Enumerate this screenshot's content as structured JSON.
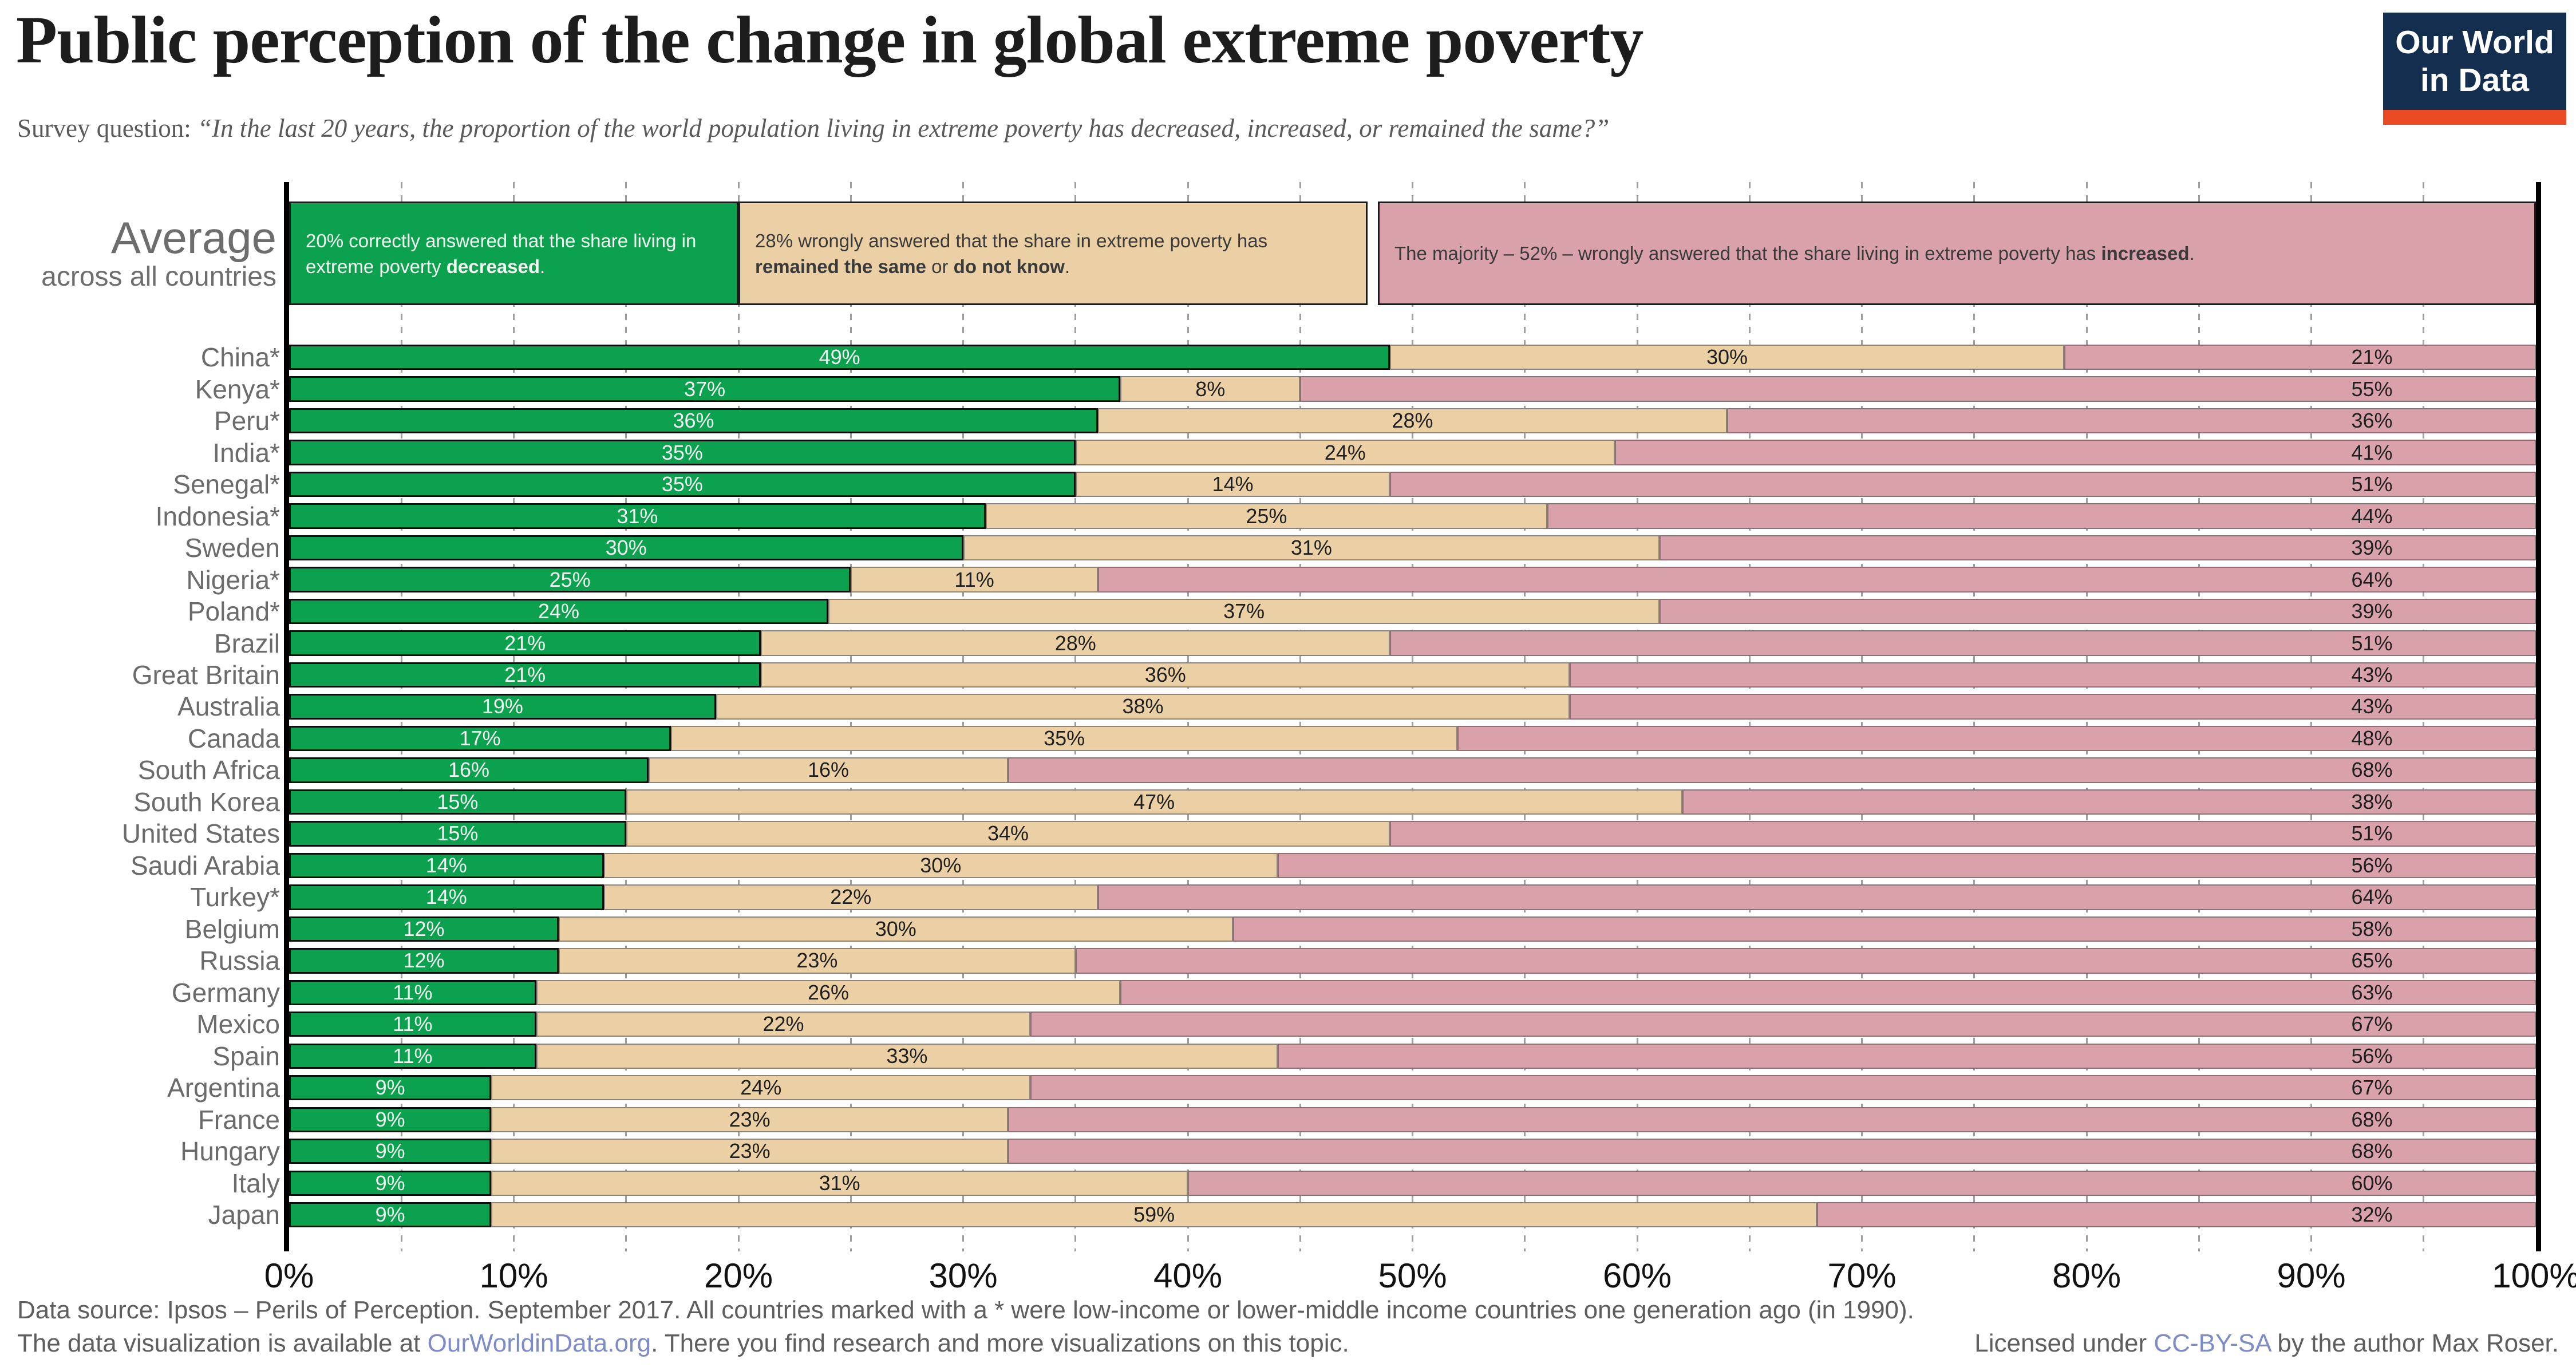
{
  "page": {
    "title": "Public perception of the change in global extreme poverty"
  },
  "logo": {
    "line1": "Our World",
    "line2": "in Data",
    "bg_color": "#132e4e",
    "accent_color": "#ea4b24"
  },
  "survey_question": {
    "label": "Survey question:",
    "quote": "“In the last 20 years, the proportion of the world population living in extreme poverty has decreased, increased, or remained the same?”"
  },
  "legend": {
    "title": "Average",
    "subtitle": "across all countries",
    "boxes": [
      {
        "key": "decreased",
        "width_pct": 20,
        "color": "#0ba14e",
        "text_color": "#f2f7f2",
        "parts": [
          {
            "t": "20% correctly answered that the share living in extreme poverty "
          },
          {
            "t": "decreased",
            "b": true
          },
          {
            "t": "."
          }
        ]
      },
      {
        "key": "same",
        "width_pct": 28,
        "color": "#ecd0a5",
        "text_color": "#3a3a3a",
        "parts": [
          {
            "t": "28% wrongly answered that the share in extreme poverty has "
          },
          {
            "t": "remained the same",
            "b": true
          },
          {
            "t": " or "
          },
          {
            "t": "do not know",
            "b": true
          },
          {
            "t": "."
          }
        ]
      },
      {
        "key": "increased",
        "width_pct": 52,
        "color": "#d9a1aa",
        "text_color": "#3a3a3a",
        "parts": [
          {
            "t": "The majority – 52% – wrongly answered that the share living in extreme poverty has "
          },
          {
            "t": "increased",
            "b": true
          },
          {
            "t": "."
          }
        ]
      }
    ]
  },
  "chart_data": {
    "type": "bar",
    "orientation": "horizontal",
    "stacked": true,
    "unit": "%",
    "xlim": [
      0,
      100
    ],
    "x_tick_labels": [
      "0%",
      "10%",
      "20%",
      "30%",
      "40%",
      "50%",
      "60%",
      "70%",
      "80%",
      "90%",
      "100%"
    ],
    "gridlines_every_pct": 5,
    "grid": "dashed",
    "series": [
      {
        "key": "decreased",
        "name": "correctly answered: decreased",
        "color": "#0ba14e"
      },
      {
        "key": "same",
        "name": "wrongly answered: remained the same or do not know",
        "color": "#ecd0a5"
      },
      {
        "key": "increased",
        "name": "wrongly answered: increased",
        "color": "#d9a1aa"
      }
    ],
    "average": {
      "decreased": 20,
      "same": 28,
      "increased": 52
    },
    "countries": [
      {
        "name": "China*",
        "decreased": 49,
        "same": 30,
        "increased": 21
      },
      {
        "name": "Kenya*",
        "decreased": 37,
        "same": 8,
        "increased": 55
      },
      {
        "name": "Peru*",
        "decreased": 36,
        "same": 28,
        "increased": 36
      },
      {
        "name": "India*",
        "decreased": 35,
        "same": 24,
        "increased": 41
      },
      {
        "name": "Senegal*",
        "decreased": 35,
        "same": 14,
        "increased": 51
      },
      {
        "name": "Indonesia*",
        "decreased": 31,
        "same": 25,
        "increased": 44
      },
      {
        "name": "Sweden",
        "decreased": 30,
        "same": 31,
        "increased": 39
      },
      {
        "name": "Nigeria*",
        "decreased": 25,
        "same": 11,
        "increased": 64
      },
      {
        "name": "Poland*",
        "decreased": 24,
        "same": 37,
        "increased": 39
      },
      {
        "name": "Brazil",
        "decreased": 21,
        "same": 28,
        "increased": 51
      },
      {
        "name": "Great Britain",
        "decreased": 21,
        "same": 36,
        "increased": 43
      },
      {
        "name": "Australia",
        "decreased": 19,
        "same": 38,
        "increased": 43
      },
      {
        "name": "Canada",
        "decreased": 17,
        "same": 35,
        "increased": 48
      },
      {
        "name": "South Africa",
        "decreased": 16,
        "same": 16,
        "increased": 68
      },
      {
        "name": "South Korea",
        "decreased": 15,
        "same": 47,
        "increased": 38
      },
      {
        "name": "United States",
        "decreased": 15,
        "same": 34,
        "increased": 51
      },
      {
        "name": "Saudi Arabia",
        "decreased": 14,
        "same": 30,
        "increased": 56
      },
      {
        "name": "Turkey*",
        "decreased": 14,
        "same": 22,
        "increased": 64
      },
      {
        "name": "Belgium",
        "decreased": 12,
        "same": 30,
        "increased": 58
      },
      {
        "name": "Russia",
        "decreased": 12,
        "same": 23,
        "increased": 65
      },
      {
        "name": "Germany",
        "decreased": 11,
        "same": 26,
        "increased": 63
      },
      {
        "name": "Mexico",
        "decreased": 11,
        "same": 22,
        "increased": 67
      },
      {
        "name": "Spain",
        "decreased": 11,
        "same": 33,
        "increased": 56
      },
      {
        "name": "Argentina",
        "decreased": 9,
        "same": 24,
        "increased": 67
      },
      {
        "name": "France",
        "decreased": 9,
        "same": 23,
        "increased": 68
      },
      {
        "name": "Hungary",
        "decreased": 9,
        "same": 23,
        "increased": 68
      },
      {
        "name": "Italy",
        "decreased": 9,
        "same": 31,
        "increased": 60
      },
      {
        "name": "Japan",
        "decreased": 9,
        "same": 59,
        "increased": 32
      }
    ]
  },
  "footer": {
    "line1": "Data source: Ipsos – Perils of Perception. September 2017. All countries marked with a * were low-income or lower-middle income countries one generation ago (in 1990).",
    "line2_left": [
      {
        "t": "The data visualization is available at "
      },
      {
        "t": "OurWorldinData.org",
        "link": true
      },
      {
        "t": ". There you find research and more visualizations on this topic."
      }
    ],
    "line2_right": [
      {
        "t": "Licensed under "
      },
      {
        "t": "CC-BY-SA",
        "link": true
      },
      {
        "t": " by the author Max Roser."
      }
    ]
  }
}
